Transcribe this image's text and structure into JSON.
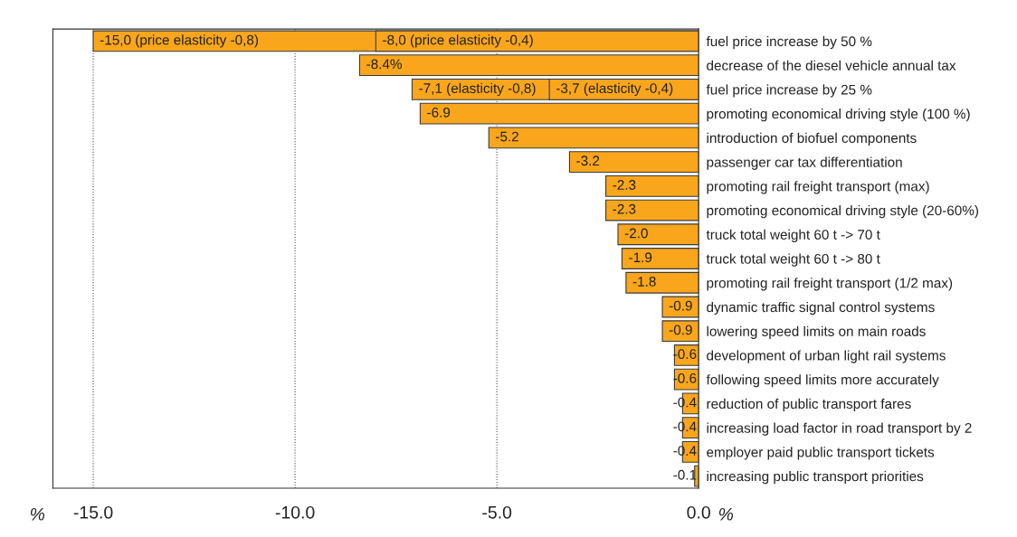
{
  "chart_data": {
    "type": "bar",
    "orientation": "horizontal",
    "categories": [
      "fuel price increase by 50 %",
      "decrease of the diesel vehicle annual tax",
      "fuel price increase by 25 %",
      "promoting economical driving style (100 %)",
      "introduction of biofuel components",
      "passenger car tax differentiation",
      "promoting rail freight transport (max)",
      "promoting economical driving style (20-60%)",
      "truck total weight 60 t -> 70 t",
      "truck total weight 60 t -> 80 t",
      "promoting rail freight transport (1/2 max)",
      "dynamic traffic signal control systems",
      "lowering speed limits on main roads",
      "development of urban light rail systems",
      "following speed limits more accurately",
      "reduction of public transport fares",
      "increasing load factor in road transport by 2",
      "employer paid public transport tickets",
      "increasing public transport priorities"
    ],
    "series": [
      {
        "color": "#f9a61c",
        "values": [
          -15.0,
          null,
          -7.1,
          null,
          null,
          null,
          null,
          null,
          null,
          null,
          null,
          null,
          null,
          null,
          null,
          null,
          null,
          null,
          null
        ],
        "value_labels": [
          "-15,0 (price elasticity -0,8)",
          null,
          "-7,1 (elasticity -0,8)",
          null,
          null,
          null,
          null,
          null,
          null,
          null,
          null,
          null,
          null,
          null,
          null,
          null,
          null,
          null,
          null
        ]
      },
      {
        "color": "#f9a61c",
        "values": [
          -8.0,
          -8.4,
          -3.7,
          -6.9,
          -5.2,
          -3.2,
          -2.3,
          -2.3,
          -2.0,
          -1.9,
          -1.8,
          -0.9,
          -0.9,
          -0.6,
          -0.6,
          -0.4,
          -0.4,
          -0.4,
          -0.1
        ],
        "value_labels": [
          "-8,0 (price elasticity -0,4)",
          "-8.4%",
          "-3,7 (elasticity -0,4)",
          "-6.9",
          "-5.2",
          "-3.2",
          "-2.3",
          "-2.3",
          "-2.0",
          "-1.9",
          "-1.8",
          "-0.9",
          "-0.9",
          "-0.6",
          "-0.6",
          "-0.4",
          "-0.4",
          "-0.4",
          "-0.1"
        ]
      }
    ],
    "xlim": [
      -16,
      0
    ],
    "xticks": [
      {
        "value": -15,
        "label": "-15.0"
      },
      {
        "value": -10,
        "label": "-10.0"
      },
      {
        "value": -5,
        "label": "-5.0"
      },
      {
        "value": 0,
        "label": "0.0"
      }
    ],
    "grid": "x",
    "annotations": [
      "%",
      "%"
    ]
  }
}
